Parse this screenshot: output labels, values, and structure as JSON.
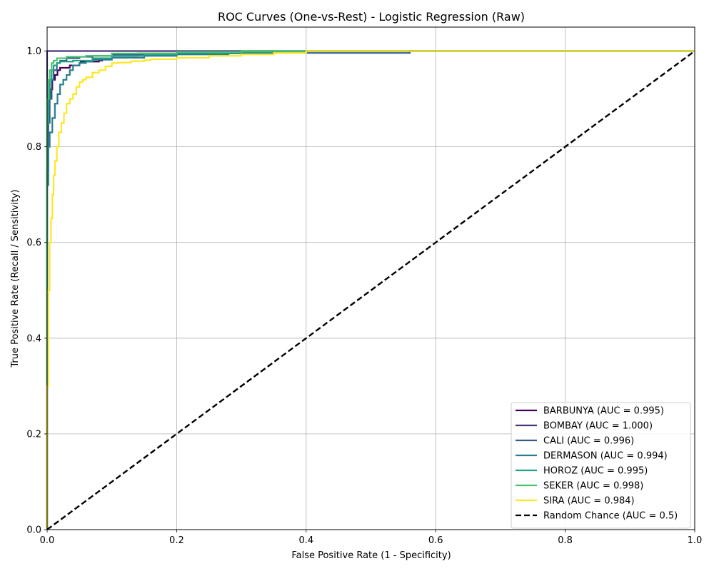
{
  "chart_data": {
    "type": "line",
    "title": "ROC Curves (One-vs-Rest) - Logistic Regression (Raw)",
    "xlabel": "False Positive Rate (1 - Specificity)",
    "ylabel": "True Positive Rate (Recall / Sensitivity)",
    "xlim": [
      0.0,
      1.0
    ],
    "ylim": [
      0.0,
      1.05
    ],
    "x_ticks": [
      "0.0",
      "0.2",
      "0.4",
      "0.6",
      "0.8",
      "1.0"
    ],
    "y_ticks": [
      "0.0",
      "0.2",
      "0.4",
      "0.6",
      "0.8",
      "1.0"
    ],
    "grid": true,
    "legend_position": "lower-right",
    "series": [
      {
        "name": "BARBUNYA (AUC = 0.995)",
        "color": "#440154",
        "dashed": false,
        "points": [
          [
            0,
            0
          ],
          [
            0,
            0.62
          ],
          [
            0.001,
            0.75
          ],
          [
            0.002,
            0.85
          ],
          [
            0.003,
            0.89
          ],
          [
            0.005,
            0.9
          ],
          [
            0.008,
            0.92
          ],
          [
            0.012,
            0.94
          ],
          [
            0.016,
            0.95
          ],
          [
            0.02,
            0.96
          ],
          [
            0.025,
            0.965
          ],
          [
            0.035,
            0.965
          ],
          [
            0.036,
            0.97
          ],
          [
            0.05,
            0.97
          ],
          [
            0.052,
            0.975
          ],
          [
            0.08,
            0.978
          ],
          [
            0.085,
            0.98
          ],
          [
            0.1,
            0.985
          ],
          [
            0.14,
            0.99
          ],
          [
            0.25,
            0.995
          ],
          [
            0.3,
            0.998
          ],
          [
            1.0,
            1.0
          ]
        ]
      },
      {
        "name": "BOMBAY (AUC = 1.000)",
        "color": "#46327e",
        "dashed": false,
        "points": [
          [
            0,
            0
          ],
          [
            0,
            1.0
          ],
          [
            1.0,
            1.0
          ]
        ]
      },
      {
        "name": "CALI (AUC = 0.996)",
        "color": "#365c8d",
        "dashed": false,
        "points": [
          [
            0,
            0
          ],
          [
            0,
            0.6
          ],
          [
            0.002,
            0.75
          ],
          [
            0.004,
            0.85
          ],
          [
            0.007,
            0.9
          ],
          [
            0.01,
            0.94
          ],
          [
            0.015,
            0.96
          ],
          [
            0.02,
            0.975
          ],
          [
            0.03,
            0.98
          ],
          [
            0.05,
            0.985
          ],
          [
            0.07,
            0.988
          ],
          [
            0.1,
            0.99
          ],
          [
            0.2,
            0.993
          ],
          [
            0.56,
            0.996
          ],
          [
            0.561,
            1.0
          ],
          [
            1.0,
            1.0
          ]
        ]
      },
      {
        "name": "DERMASON (AUC = 0.994)",
        "color": "#277f8e",
        "dashed": false,
        "points": [
          [
            0,
            0
          ],
          [
            0,
            0.5
          ],
          [
            0.002,
            0.72
          ],
          [
            0.004,
            0.8
          ],
          [
            0.008,
            0.83
          ],
          [
            0.012,
            0.86
          ],
          [
            0.016,
            0.89
          ],
          [
            0.02,
            0.91
          ],
          [
            0.025,
            0.93
          ],
          [
            0.03,
            0.94
          ],
          [
            0.035,
            0.95
          ],
          [
            0.04,
            0.96
          ],
          [
            0.05,
            0.97
          ],
          [
            0.06,
            0.975
          ],
          [
            0.07,
            0.978
          ],
          [
            0.1,
            0.982
          ],
          [
            0.15,
            0.986
          ],
          [
            0.2,
            0.99
          ],
          [
            0.28,
            0.993
          ],
          [
            0.35,
            0.995
          ],
          [
            0.4,
            0.998
          ],
          [
            0.42,
            1.0
          ],
          [
            1.0,
            1.0
          ]
        ]
      },
      {
        "name": "HOROZ (AUC = 0.995)",
        "color": "#1fa187",
        "dashed": false,
        "points": [
          [
            0,
            0
          ],
          [
            0,
            0.7
          ],
          [
            0.002,
            0.85
          ],
          [
            0.004,
            0.9
          ],
          [
            0.007,
            0.94
          ],
          [
            0.01,
            0.96
          ],
          [
            0.015,
            0.97
          ],
          [
            0.02,
            0.975
          ],
          [
            0.04,
            0.978
          ],
          [
            0.07,
            0.98
          ],
          [
            0.1,
            0.985
          ],
          [
            0.15,
            0.99
          ],
          [
            0.2,
            0.993
          ],
          [
            0.3,
            0.996
          ],
          [
            0.4,
            0.998
          ],
          [
            0.41,
            1.0
          ],
          [
            1.0,
            1.0
          ]
        ]
      },
      {
        "name": "SEKER (AUC = 0.998)",
        "color": "#4ac16d",
        "dashed": false,
        "points": [
          [
            0,
            0
          ],
          [
            0,
            0.8
          ],
          [
            0.002,
            0.9
          ],
          [
            0.004,
            0.94
          ],
          [
            0.007,
            0.96
          ],
          [
            0.01,
            0.975
          ],
          [
            0.015,
            0.98
          ],
          [
            0.03,
            0.985
          ],
          [
            0.06,
            0.988
          ],
          [
            0.1,
            0.99
          ],
          [
            0.2,
            0.995
          ],
          [
            0.3,
            0.998
          ],
          [
            0.35,
            1.0
          ],
          [
            1.0,
            1.0
          ]
        ]
      },
      {
        "name": "SIRA (AUC = 0.984)",
        "color": "#fde725",
        "dashed": false,
        "points": [
          [
            0,
            0
          ],
          [
            0,
            0.1
          ],
          [
            0.002,
            0.3
          ],
          [
            0.004,
            0.5
          ],
          [
            0.006,
            0.6
          ],
          [
            0.008,
            0.65
          ],
          [
            0.01,
            0.7
          ],
          [
            0.012,
            0.74
          ],
          [
            0.015,
            0.77
          ],
          [
            0.018,
            0.8
          ],
          [
            0.022,
            0.83
          ],
          [
            0.026,
            0.85
          ],
          [
            0.03,
            0.87
          ],
          [
            0.035,
            0.89
          ],
          [
            0.04,
            0.9
          ],
          [
            0.045,
            0.91
          ],
          [
            0.05,
            0.925
          ],
          [
            0.055,
            0.935
          ],
          [
            0.06,
            0.94
          ],
          [
            0.07,
            0.945
          ],
          [
            0.08,
            0.955
          ],
          [
            0.09,
            0.96
          ],
          [
            0.1,
            0.968
          ],
          [
            0.11,
            0.975
          ],
          [
            0.13,
            0.976
          ],
          [
            0.15,
            0.979
          ],
          [
            0.16,
            0.981
          ],
          [
            0.2,
            0.983
          ],
          [
            0.25,
            0.986
          ],
          [
            0.3,
            0.99
          ],
          [
            0.35,
            0.993
          ],
          [
            0.4,
            0.996
          ],
          [
            0.41,
            1.0
          ],
          [
            1.0,
            1.0
          ]
        ]
      },
      {
        "name": "Random Chance (AUC = 0.5)",
        "color": "#000000",
        "dashed": true,
        "points": [
          [
            0,
            0
          ],
          [
            1.0,
            1.0
          ]
        ]
      }
    ]
  }
}
